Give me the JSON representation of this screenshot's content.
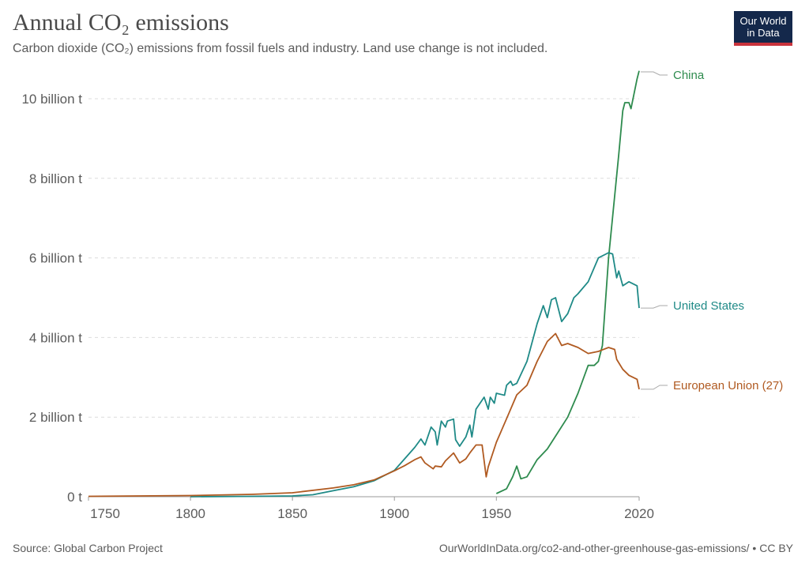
{
  "title": "Annual CO₂ emissions",
  "subtitle": "Carbon dioxide (CO₂) emissions from fossil fuels and industry. Land use change is not included.",
  "logo": {
    "line1": "Our World",
    "line2": "in Data",
    "colors": {
      "bg": "#14284b",
      "stripe": "#c9333c"
    }
  },
  "footer": {
    "source": "Source: Global Carbon Project",
    "url": "OurWorldInData.org/co2-and-other-greenhouse-gas-emissions/ • CC BY"
  },
  "chart_data": {
    "type": "line",
    "title": "Annual CO₂ emissions",
    "xlim": [
      1750,
      2020
    ],
    "ylim": [
      0,
      10.7
    ],
    "grid": true,
    "x_ticks": [
      "1750",
      "1800",
      "1850",
      "1900",
      "1950",
      "2020"
    ],
    "x_tick_values": [
      1750,
      1800,
      1850,
      1900,
      1950,
      2020
    ],
    "y_ticks": [
      "0 t",
      "2 billion t",
      "4 billion t",
      "6 billion t",
      "8 billion t",
      "10 billion t"
    ],
    "y_tick_values": [
      0,
      2,
      4,
      6,
      8,
      10
    ],
    "unit": "billion t",
    "legend_placement": "right, inline labels",
    "series": [
      {
        "name": "China",
        "color": "#2e8b4e",
        "points": [
          [
            1950,
            0.08
          ],
          [
            1955,
            0.2
          ],
          [
            1958,
            0.5
          ],
          [
            1960,
            0.77
          ],
          [
            1962,
            0.45
          ],
          [
            1965,
            0.5
          ],
          [
            1970,
            0.93
          ],
          [
            1975,
            1.2
          ],
          [
            1980,
            1.6
          ],
          [
            1985,
            2.0
          ],
          [
            1990,
            2.6
          ],
          [
            1995,
            3.3
          ],
          [
            1998,
            3.3
          ],
          [
            2000,
            3.4
          ],
          [
            2002,
            3.8
          ],
          [
            2005,
            6.0
          ],
          [
            2010,
            8.6
          ],
          [
            2012,
            9.7
          ],
          [
            2013,
            9.9
          ],
          [
            2015,
            9.9
          ],
          [
            2016,
            9.75
          ],
          [
            2019,
            10.5
          ],
          [
            2020,
            10.7
          ]
        ]
      },
      {
        "name": "United States",
        "color": "#1f8a87",
        "points": [
          [
            1800,
            0.0
          ],
          [
            1830,
            0.01
          ],
          [
            1850,
            0.02
          ],
          [
            1860,
            0.05
          ],
          [
            1870,
            0.15
          ],
          [
            1880,
            0.25
          ],
          [
            1890,
            0.4
          ],
          [
            1900,
            0.66
          ],
          [
            1905,
            0.95
          ],
          [
            1910,
            1.24
          ],
          [
            1913,
            1.45
          ],
          [
            1915,
            1.3
          ],
          [
            1918,
            1.75
          ],
          [
            1920,
            1.63
          ],
          [
            1921,
            1.3
          ],
          [
            1923,
            1.9
          ],
          [
            1925,
            1.75
          ],
          [
            1926,
            1.9
          ],
          [
            1929,
            1.95
          ],
          [
            1930,
            1.43
          ],
          [
            1932,
            1.27
          ],
          [
            1935,
            1.5
          ],
          [
            1937,
            1.8
          ],
          [
            1938,
            1.5
          ],
          [
            1940,
            2.2
          ],
          [
            1944,
            2.5
          ],
          [
            1946,
            2.2
          ],
          [
            1947,
            2.5
          ],
          [
            1949,
            2.35
          ],
          [
            1950,
            2.6
          ],
          [
            1954,
            2.55
          ],
          [
            1955,
            2.8
          ],
          [
            1957,
            2.9
          ],
          [
            1958,
            2.8
          ],
          [
            1960,
            2.85
          ],
          [
            1965,
            3.4
          ],
          [
            1970,
            4.35
          ],
          [
            1973,
            4.8
          ],
          [
            1975,
            4.5
          ],
          [
            1977,
            4.95
          ],
          [
            1979,
            5.0
          ],
          [
            1982,
            4.4
          ],
          [
            1985,
            4.6
          ],
          [
            1988,
            5.0
          ],
          [
            1990,
            5.1
          ],
          [
            1995,
            5.4
          ],
          [
            2000,
            6.0
          ],
          [
            2005,
            6.13
          ],
          [
            2007,
            6.1
          ],
          [
            2009,
            5.5
          ],
          [
            2010,
            5.67
          ],
          [
            2012,
            5.3
          ],
          [
            2015,
            5.4
          ],
          [
            2019,
            5.3
          ],
          [
            2020,
            4.74
          ]
        ]
      },
      {
        "name": "European Union (27)",
        "color": "#b05a21",
        "points": [
          [
            1750,
            0.01
          ],
          [
            1800,
            0.03
          ],
          [
            1830,
            0.06
          ],
          [
            1850,
            0.1
          ],
          [
            1870,
            0.22
          ],
          [
            1880,
            0.3
          ],
          [
            1890,
            0.42
          ],
          [
            1900,
            0.65
          ],
          [
            1905,
            0.78
          ],
          [
            1910,
            0.93
          ],
          [
            1913,
            1.0
          ],
          [
            1915,
            0.85
          ],
          [
            1919,
            0.7
          ],
          [
            1920,
            0.77
          ],
          [
            1923,
            0.75
          ],
          [
            1925,
            0.9
          ],
          [
            1929,
            1.1
          ],
          [
            1932,
            0.85
          ],
          [
            1935,
            0.95
          ],
          [
            1937,
            1.1
          ],
          [
            1940,
            1.3
          ],
          [
            1943,
            1.3
          ],
          [
            1945,
            0.5
          ],
          [
            1946,
            0.75
          ],
          [
            1950,
            1.37
          ],
          [
            1955,
            1.96
          ],
          [
            1960,
            2.56
          ],
          [
            1965,
            2.8
          ],
          [
            1970,
            3.4
          ],
          [
            1975,
            3.9
          ],
          [
            1979,
            4.1
          ],
          [
            1982,
            3.8
          ],
          [
            1985,
            3.85
          ],
          [
            1990,
            3.75
          ],
          [
            1995,
            3.6
          ],
          [
            2000,
            3.65
          ],
          [
            2005,
            3.75
          ],
          [
            2008,
            3.7
          ],
          [
            2009,
            3.45
          ],
          [
            2012,
            3.2
          ],
          [
            2015,
            3.05
          ],
          [
            2019,
            2.95
          ],
          [
            2020,
            2.7
          ]
        ]
      }
    ]
  }
}
